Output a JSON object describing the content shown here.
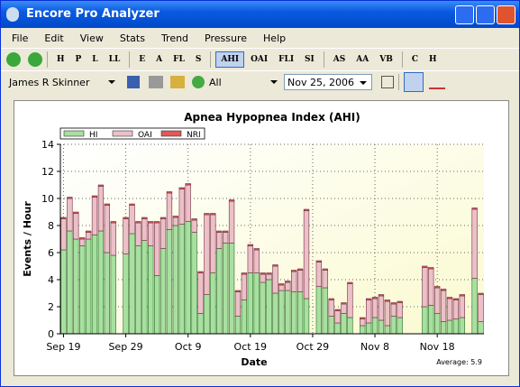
{
  "window": {
    "title": "Encore Pro Analyzer"
  },
  "menu": {
    "items": [
      "File",
      "Edit",
      "View",
      "Stats",
      "Trend",
      "Pressure",
      "Help"
    ]
  },
  "toolbar": {
    "buttons": [
      "H",
      "P",
      "L",
      "LL",
      "E",
      "A",
      "FL",
      "S",
      "AHI",
      "OAI",
      "FLI",
      "SI",
      "AS",
      "AA",
      "VB",
      "C",
      "H"
    ]
  },
  "filters": {
    "patient": "James R Skinner",
    "range": "All",
    "date": "Nov 25, 2006"
  },
  "chart_data": {
    "type": "bar",
    "stacked": true,
    "title": "Apnea Hypopnea Index (AHI)",
    "x_label": "Date",
    "y_label": "Events / Hour",
    "annotation": "Average: 5.9",
    "grid": true,
    "legend": "top-left",
    "x": [
      0,
      1,
      2,
      3,
      4,
      5,
      6,
      7,
      8,
      9,
      10,
      11,
      12,
      13,
      14,
      15,
      16,
      17,
      18,
      19,
      20,
      21,
      22,
      23,
      24,
      25,
      26,
      27,
      28,
      29,
      30,
      31,
      32,
      33,
      34,
      35,
      36,
      37,
      38,
      39,
      40,
      41,
      42,
      43,
      44,
      45,
      46,
      47,
      48,
      49,
      50,
      51,
      52,
      53,
      54,
      55,
      56,
      57,
      58,
      59,
      60,
      61,
      62,
      63,
      64,
      65,
      66,
      67
    ],
    "xlim": [
      -0.5,
      67.5
    ],
    "xticks": [
      {
        "value": 0,
        "label": "Sep 19"
      },
      {
        "value": 10,
        "label": "Sep 29"
      },
      {
        "value": 20,
        "label": "Oct 9"
      },
      {
        "value": 30,
        "label": "Oct 19"
      },
      {
        "value": 40,
        "label": "Oct 29"
      },
      {
        "value": 50,
        "label": "Nov 8"
      },
      {
        "value": 60,
        "label": "Nov 18"
      }
    ],
    "ylim": [
      0,
      14
    ],
    "yticks": [
      0,
      2,
      4,
      6,
      8,
      10,
      12,
      14
    ],
    "series": [
      {
        "name": "HI",
        "color": "#a8e0a0",
        "values": [
          6.2,
          7.6,
          7.0,
          6.5,
          7.0,
          7.3,
          7.6,
          6.0,
          5.8,
          null,
          5.9,
          7.4,
          6.5,
          6.9,
          6.5,
          4.3,
          6.3,
          7.7,
          8.0,
          8.1,
          8.3,
          7.5,
          1.5,
          2.9,
          4.5,
          6.3,
          6.7,
          6.7,
          1.3,
          2.5,
          4.5,
          4.5,
          3.8,
          4.0,
          3.0,
          3.2,
          3.2,
          3.1,
          3.1,
          2.6,
          null,
          3.5,
          3.4,
          1.3,
          0.8,
          1.5,
          1.2,
          null,
          0.6,
          0.8,
          1.2,
          1.0,
          0.6,
          1.3,
          1.2,
          null,
          null,
          null,
          2.0,
          2.1,
          1.5,
          0.9,
          1.0,
          1.1,
          1.2,
          null,
          4.1,
          0.9
        ]
      },
      {
        "name": "OAI",
        "color": "#ecc0c8",
        "values": [
          2.3,
          2.4,
          1.9,
          0.5,
          0.5,
          2.8,
          3.3,
          3.5,
          2.4,
          null,
          2.6,
          2.1,
          1.7,
          1.6,
          1.7,
          3.9,
          2.2,
          2.7,
          0.6,
          2.6,
          2.7,
          0.9,
          3.0,
          5.9,
          4.3,
          1.2,
          0.8,
          3.1,
          1.8,
          1.9,
          2.0,
          1.7,
          0.6,
          0.4,
          2.0,
          0.4,
          0.6,
          1.5,
          1.6,
          6.5,
          null,
          1.8,
          1.3,
          1.2,
          0.9,
          0.7,
          2.5,
          null,
          0.5,
          1.7,
          1.4,
          1.8,
          1.8,
          0.9,
          1.1,
          null,
          null,
          null,
          2.9,
          2.7,
          1.9,
          2.3,
          1.6,
          1.4,
          1.6,
          null,
          5.1,
          2.0
        ]
      },
      {
        "name": "NRI",
        "color": "#e05858",
        "values": [
          0.1,
          0.1,
          0.1,
          0.1,
          0.1,
          0.1,
          0.1,
          0.1,
          0.1,
          null,
          0.1,
          0.1,
          0.1,
          0.1,
          0.1,
          0.1,
          0.1,
          0.1,
          0.1,
          0.1,
          0.1,
          0.1,
          0.1,
          0.1,
          0.1,
          0.1,
          0.1,
          0.1,
          0.1,
          0.1,
          0.1,
          0.1,
          0.1,
          0.1,
          0.1,
          0.1,
          0.1,
          0.1,
          0.1,
          0.1,
          null,
          0.1,
          0.1,
          0.1,
          0.1,
          0.1,
          0.1,
          null,
          0.1,
          0.1,
          0.1,
          0.1,
          0.1,
          0.1,
          0.1,
          null,
          null,
          null,
          0.1,
          0.1,
          0.1,
          0.1,
          0.1,
          0.1,
          0.1,
          null,
          0.1,
          0.1
        ]
      }
    ]
  }
}
